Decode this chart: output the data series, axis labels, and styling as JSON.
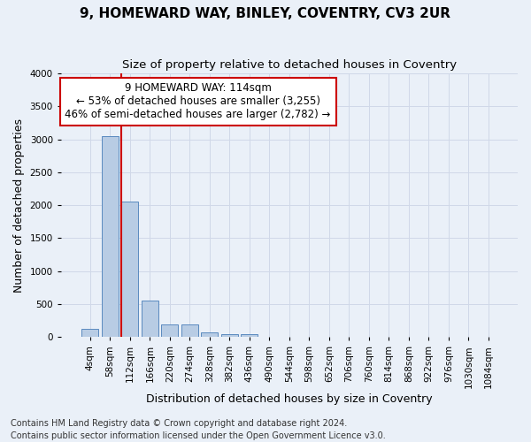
{
  "title": "9, HOMEWARD WAY, BINLEY, COVENTRY, CV3 2UR",
  "subtitle": "Size of property relative to detached houses in Coventry",
  "xlabel": "Distribution of detached houses by size in Coventry",
  "ylabel": "Number of detached properties",
  "categories": [
    "4sqm",
    "58sqm",
    "112sqm",
    "166sqm",
    "220sqm",
    "274sqm",
    "328sqm",
    "382sqm",
    "436sqm",
    "490sqm",
    "544sqm",
    "598sqm",
    "652sqm",
    "706sqm",
    "760sqm",
    "814sqm",
    "868sqm",
    "922sqm",
    "976sqm",
    "1030sqm",
    "1084sqm"
  ],
  "bar_values": [
    130,
    3050,
    2060,
    550,
    185,
    185,
    65,
    50,
    50,
    0,
    0,
    0,
    0,
    0,
    0,
    0,
    0,
    0,
    0,
    0,
    0
  ],
  "bar_color": "#b8cce4",
  "bar_edge_color": "#5a8abf",
  "grid_color": "#d0d8e8",
  "background_color": "#eaf0f8",
  "vline_color": "#cc0000",
  "annotation_text": "9 HOMEWARD WAY: 114sqm\n← 53% of detached houses are smaller (3,255)\n46% of semi-detached houses are larger (2,782) →",
  "annotation_box_color": "#ffffff",
  "annotation_box_edge": "#cc0000",
  "ylim": [
    0,
    4000
  ],
  "yticks": [
    0,
    500,
    1000,
    1500,
    2000,
    2500,
    3000,
    3500,
    4000
  ],
  "footer_line1": "Contains HM Land Registry data © Crown copyright and database right 2024.",
  "footer_line2": "Contains public sector information licensed under the Open Government Licence v3.0.",
  "title_fontsize": 11,
  "subtitle_fontsize": 9.5,
  "axis_label_fontsize": 9,
  "tick_fontsize": 7.5,
  "annotation_fontsize": 8.5,
  "footer_fontsize": 7
}
